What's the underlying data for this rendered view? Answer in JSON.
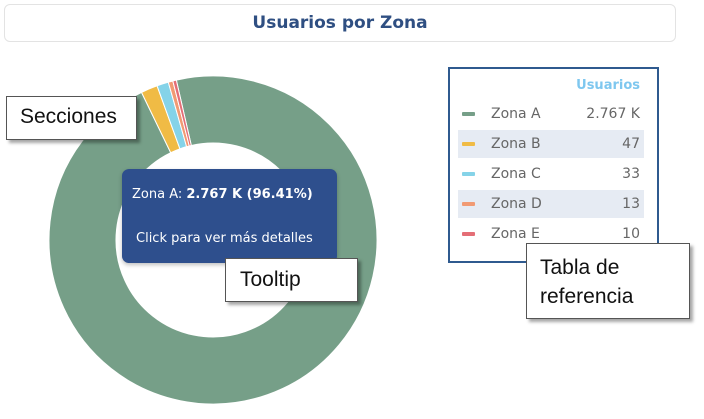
{
  "header": {
    "title": "Usuarios por Zona"
  },
  "chart_data": {
    "type": "pie",
    "style": "donut",
    "title": "Usuarios por Zona",
    "categories": [
      "Zona A",
      "Zona B",
      "Zona C",
      "Zona D",
      "Zona E"
    ],
    "values": [
      2767,
      47,
      33,
      13,
      10
    ],
    "display_values": [
      "2.767 K",
      "47",
      "33",
      "13",
      "10"
    ],
    "colors": [
      "#769f88",
      "#f0bb45",
      "#85d3e8",
      "#f19a73",
      "#e46e76"
    ],
    "legend": {
      "placement": "right",
      "header": "Usuarios",
      "shaded_rows": [
        false,
        true,
        false,
        true,
        false
      ]
    }
  },
  "tooltip": {
    "label": "Zona A",
    "value": "2.767 K (96.41%)",
    "action": "Click para ver más detalles"
  },
  "annotations": {
    "secciones": "Secciones",
    "tooltip": "Tooltip",
    "tabla_line1": "Tabla de",
    "tabla_line2": "referencia"
  }
}
